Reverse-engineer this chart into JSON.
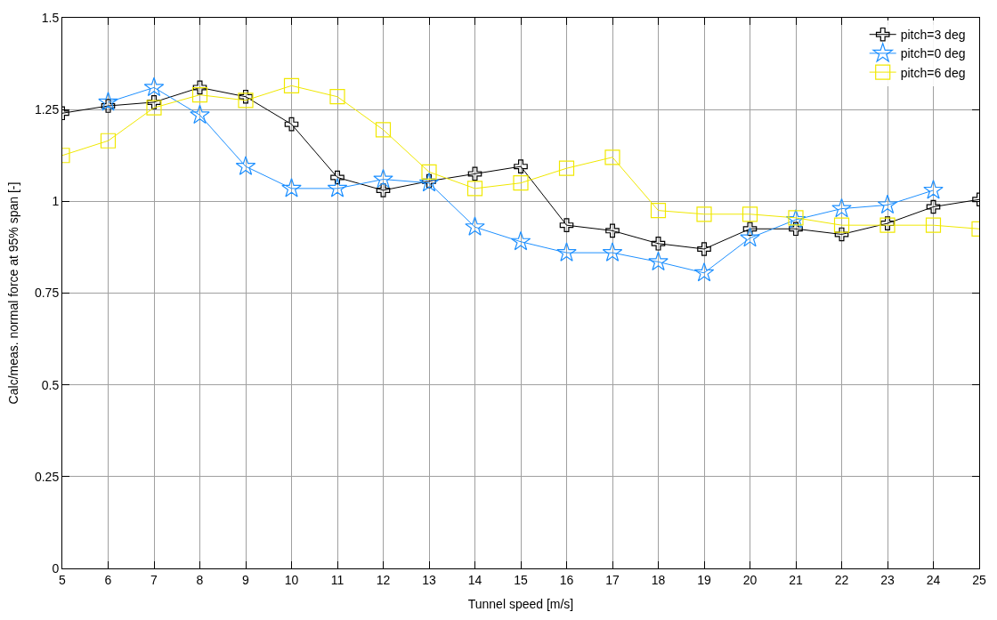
{
  "chart_data": {
    "type": "line",
    "xlabel": "Tunnel speed [m/s]",
    "ylabel": "Calc/meas. normal force at 95% span [-]",
    "x": [
      5,
      6,
      7,
      8,
      9,
      10,
      11,
      12,
      13,
      14,
      15,
      16,
      17,
      18,
      19,
      20,
      21,
      22,
      23,
      24,
      25
    ],
    "xlim": [
      5,
      25
    ],
    "xticks": [
      5,
      6,
      7,
      8,
      9,
      10,
      11,
      12,
      13,
      14,
      15,
      16,
      17,
      18,
      19,
      20,
      21,
      22,
      23,
      24,
      25
    ],
    "ylim": [
      0,
      1.5
    ],
    "yticks": [
      0,
      0.25,
      0.5,
      0.75,
      1,
      1.25,
      1.5
    ],
    "grid": true,
    "legend": "top right",
    "series": [
      {
        "name": "pitch=3 deg",
        "color": "#000000",
        "marker": "cross",
        "values": [
          1.24,
          1.26,
          1.27,
          1.31,
          1.285,
          1.21,
          1.065,
          1.03,
          1.055,
          1.075,
          1.095,
          0.935,
          0.92,
          0.885,
          0.87,
          0.925,
          0.925,
          0.91,
          0.94,
          0.985,
          1.005
        ]
      },
      {
        "name": "pitch=0 deg",
        "color": "#1e90ff",
        "marker": "star",
        "values": [
          null,
          1.27,
          1.31,
          1.235,
          1.095,
          1.035,
          1.035,
          1.06,
          1.05,
          0.93,
          0.89,
          0.86,
          0.86,
          0.835,
          0.805,
          0.9,
          0.95,
          0.98,
          0.99,
          1.03,
          null
        ]
      },
      {
        "name": "pitch=6 deg",
        "color": "#f0e800",
        "marker": "square",
        "values": [
          1.125,
          1.165,
          1.255,
          1.29,
          1.275,
          1.315,
          1.285,
          1.195,
          1.08,
          1.035,
          1.05,
          1.09,
          1.12,
          0.975,
          0.965,
          0.965,
          0.955,
          0.935,
          0.935,
          0.935,
          0.925
        ]
      }
    ]
  }
}
